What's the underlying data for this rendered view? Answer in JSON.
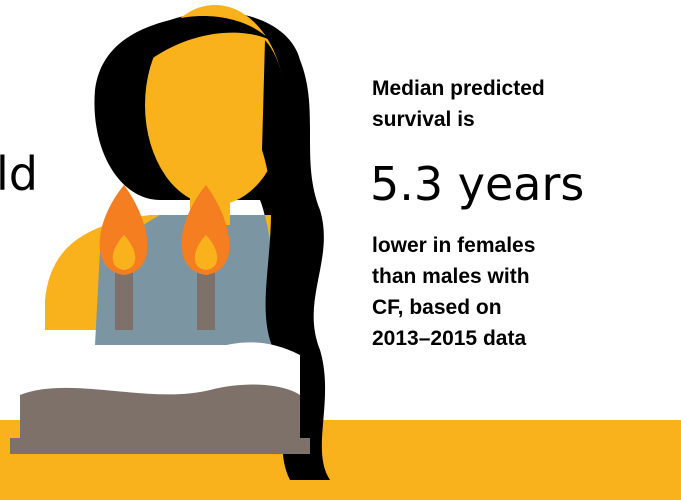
{
  "fragment": "ld",
  "intro": {
    "lines": [
      "Median predicted",
      "survival is"
    ]
  },
  "stat": "5.3 years",
  "description": {
    "lines": [
      "lower in females",
      "than males with",
      "CF, based on",
      "2013–2015 data"
    ]
  }
}
